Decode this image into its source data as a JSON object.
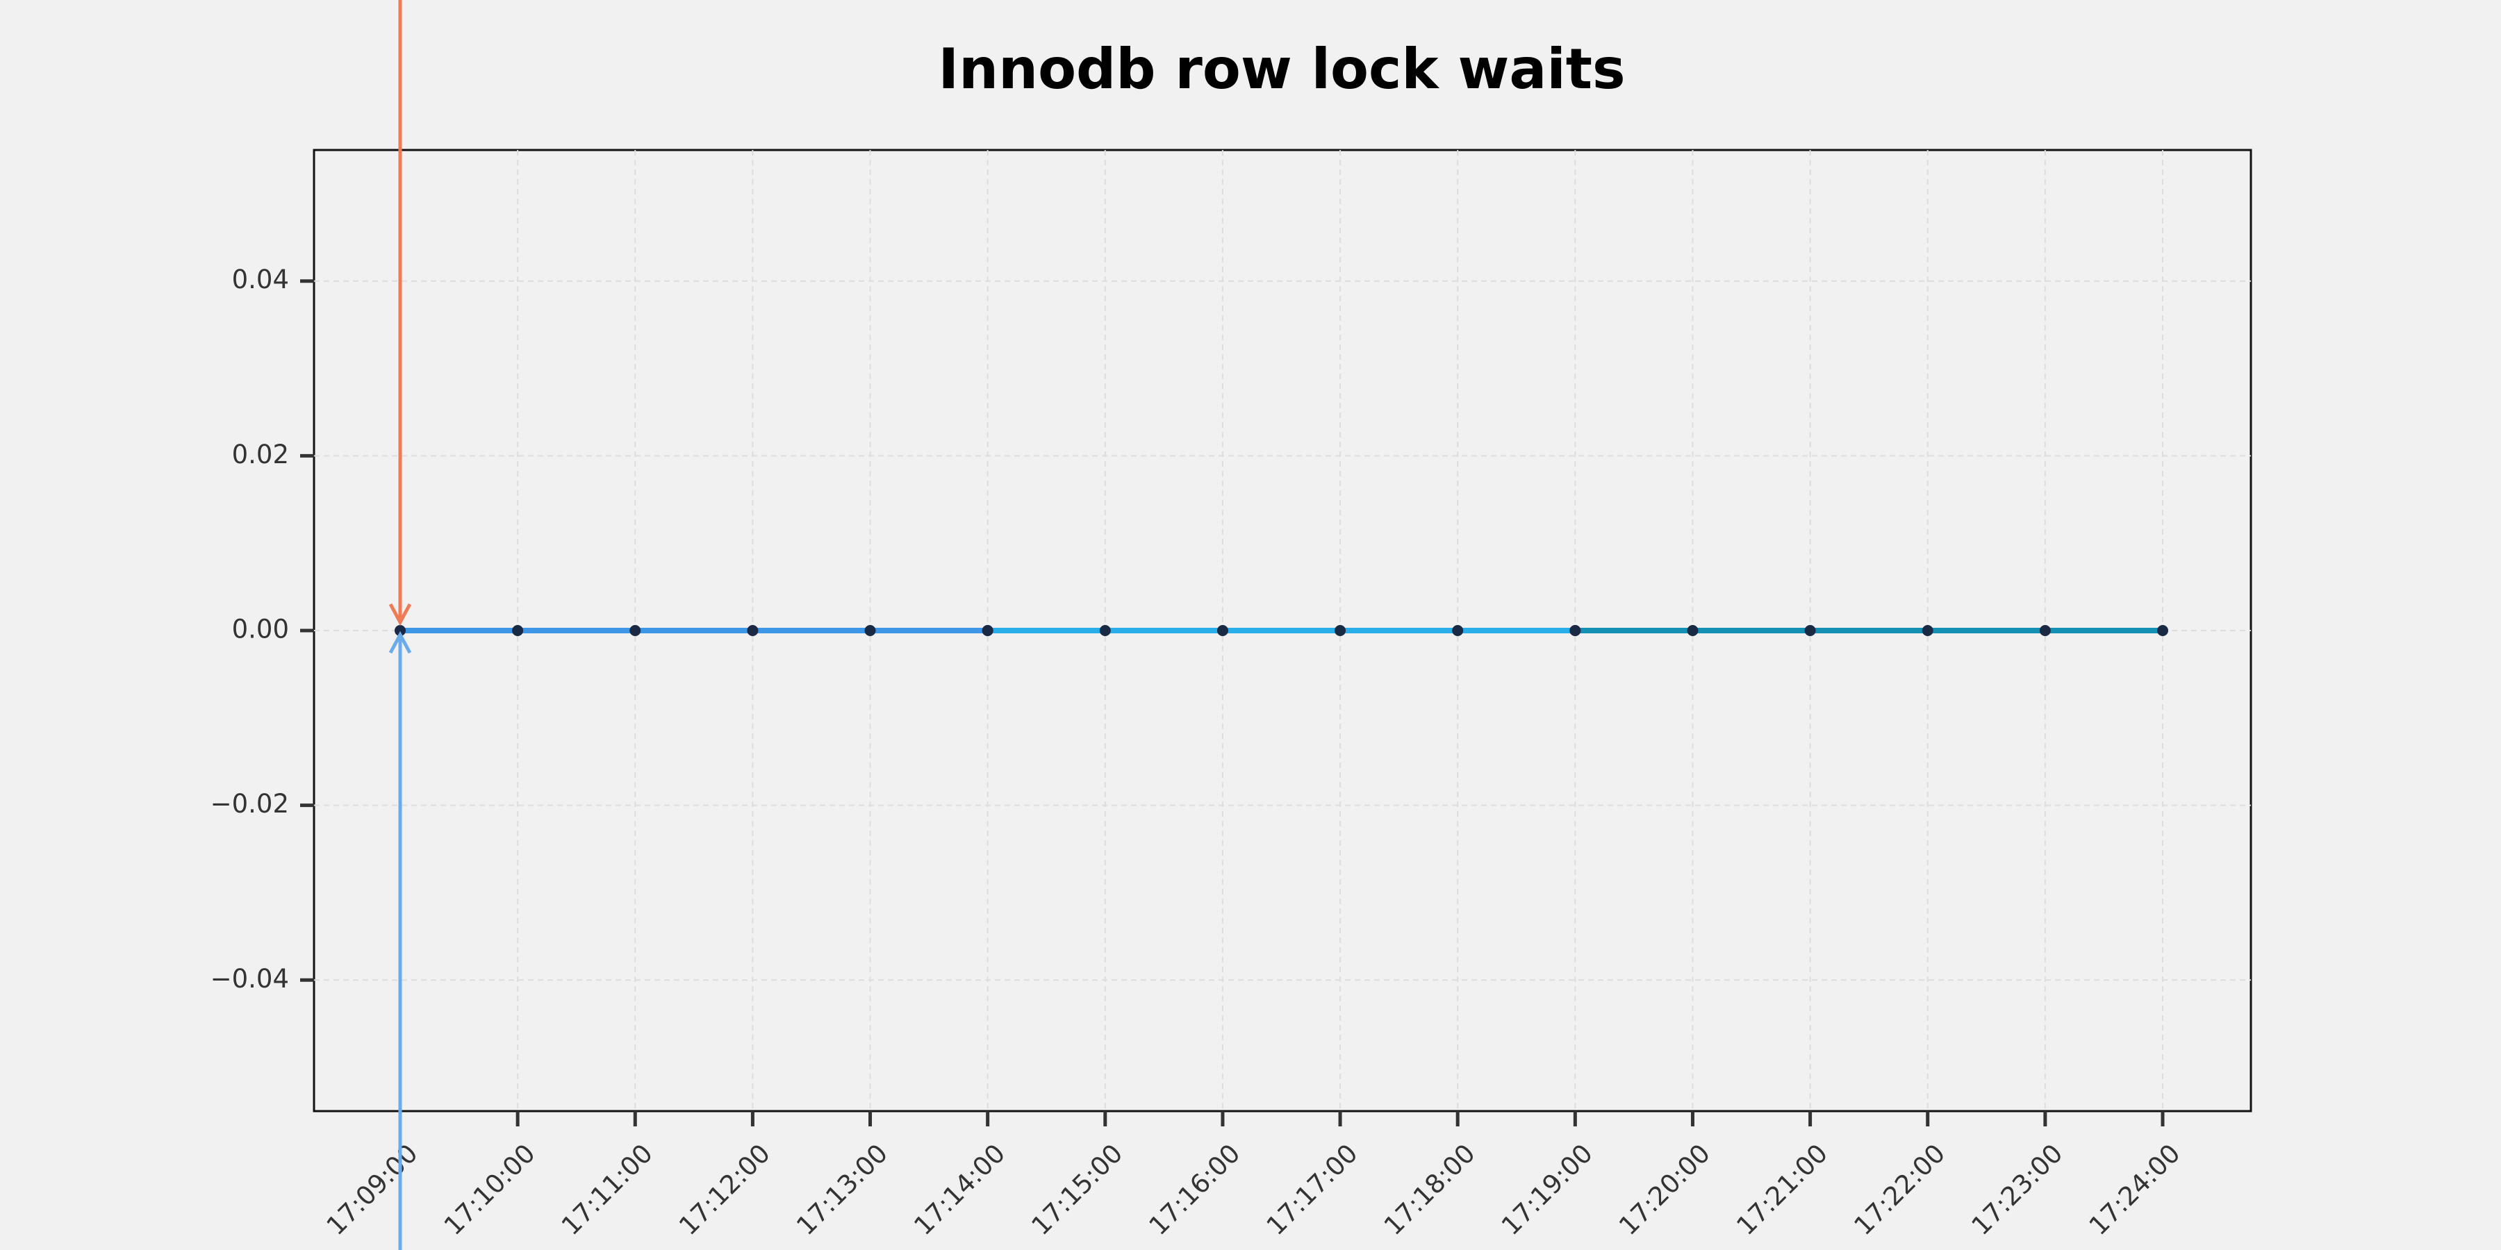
{
  "chart_data": {
    "type": "line",
    "title": "Innodb row lock waits",
    "categories": [
      "17:09:00",
      "17:10:00",
      "17:11:00",
      "17:12:00",
      "17:13:00",
      "17:14:00",
      "17:15:00",
      "17:16:00",
      "17:17:00",
      "17:18:00",
      "17:19:00",
      "17:20:00",
      "17:21:00",
      "17:22:00",
      "17:23:00",
      "17:24:00"
    ],
    "series": [
      {
        "color": "#3d96e6",
        "values": [
          0,
          0,
          0,
          0,
          0,
          0,
          null,
          null,
          null,
          null,
          null,
          null,
          null,
          null,
          null,
          null
        ]
      },
      {
        "color": "#29aee9",
        "values": [
          null,
          null,
          null,
          null,
          null,
          0,
          0,
          0,
          0,
          0,
          0,
          null,
          null,
          null,
          null,
          null
        ]
      },
      {
        "color": "#1590b5",
        "values": [
          null,
          null,
          null,
          null,
          null,
          null,
          null,
          null,
          null,
          null,
          0,
          0,
          0,
          0,
          0,
          0
        ]
      }
    ],
    "marker_color": "#1b2a44",
    "ylim": [
      -0.055,
      0.055
    ],
    "yticks": [
      {
        "value": -0.04,
        "label": "−0.04"
      },
      {
        "value": -0.02,
        "label": "−0.02"
      },
      {
        "value": 0,
        "label": "0.00"
      },
      0.02,
      0.04
    ],
    "grid": true
  }
}
